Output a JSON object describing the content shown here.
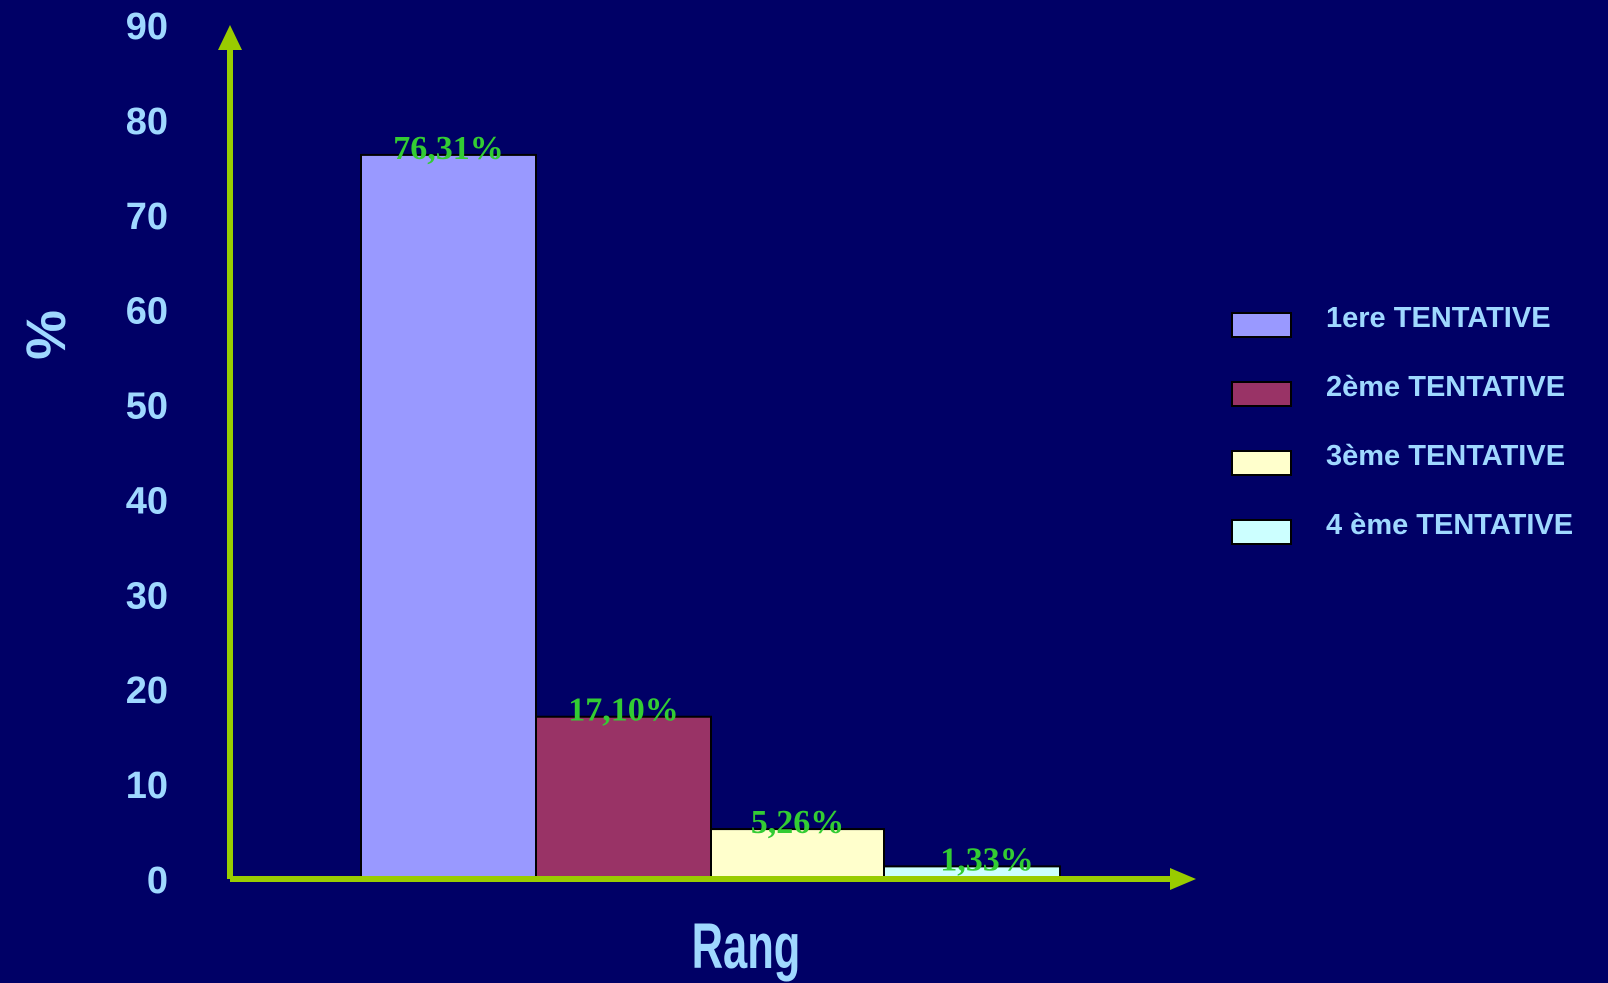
{
  "chart_data": {
    "type": "bar",
    "ylabel": "%",
    "xlabel": "Rang",
    "ylim": [
      0,
      90
    ],
    "yticks": [
      "0",
      "10",
      "20",
      "30",
      "40",
      "50",
      "60",
      "70",
      "80",
      "90"
    ],
    "grid": false,
    "legend_position": "right",
    "series": [
      {
        "name": "1ere TENTATIVE",
        "value": 76.31,
        "label": "76,31%",
        "color": "#9999ff"
      },
      {
        "name": "2ème TENTATIVE",
        "value": 17.1,
        "label": "17,10%",
        "color": "#993366"
      },
      {
        "name": "3ème TENTATIVE",
        "value": 5.26,
        "label": "5,26%",
        "color": "#ffffcc"
      },
      {
        "name": "4 ème TENTATIVE",
        "value": 1.33,
        "label": "1,33%",
        "color": "#ccffff"
      }
    ]
  },
  "colors": {
    "background": "#000066",
    "axis": "#99cc00",
    "text": "#9fd8ff",
    "data_label": "#33cc33"
  }
}
